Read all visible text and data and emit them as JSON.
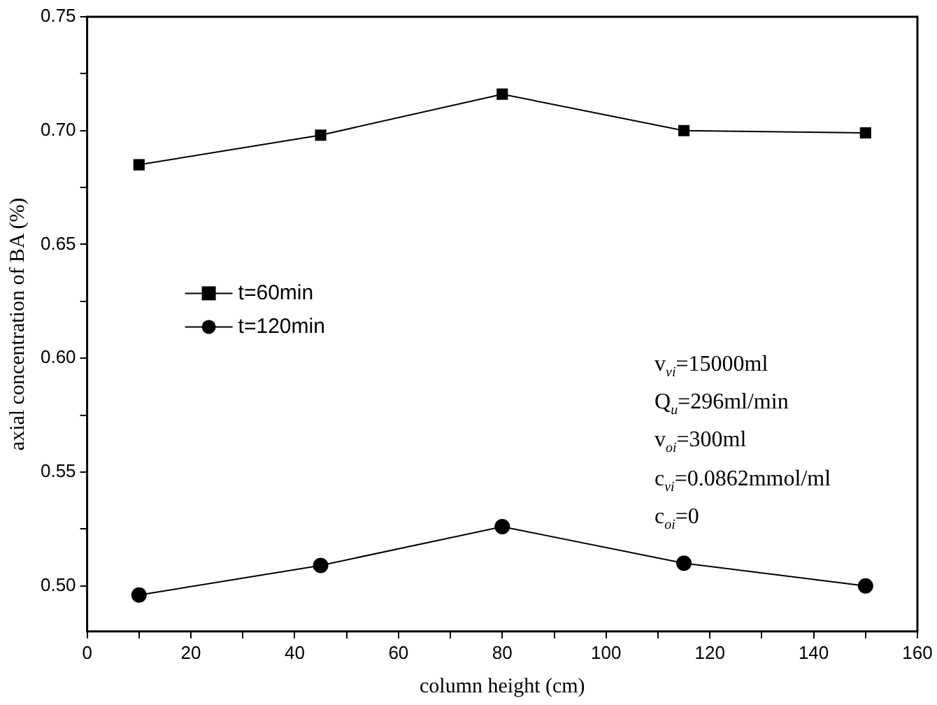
{
  "chart_data": {
    "type": "line",
    "xlabel": "column height (cm)",
    "ylabel": "axial concentration of BA (%)",
    "x": [
      10,
      45,
      80,
      115,
      150
    ],
    "series": [
      {
        "name": "t=60min",
        "color": "#000000",
        "marker": "square",
        "values": [
          0.685,
          0.698,
          0.716,
          0.7,
          0.699
        ]
      },
      {
        "name": "t=120min",
        "color": "#000000",
        "marker": "circle",
        "values": [
          0.496,
          0.509,
          0.526,
          0.51,
          0.5
        ]
      }
    ],
    "xlim": [
      0,
      160
    ],
    "xticks": [
      0,
      {
        "value": 10,
        "label": null
      },
      20,
      {
        "value": 30,
        "label": null
      },
      40,
      {
        "value": 50,
        "label": null
      },
      60,
      {
        "value": 70,
        "label": null
      },
      80,
      {
        "value": 90,
        "label": null
      },
      100,
      {
        "value": 110,
        "label": null
      },
      120,
      {
        "value": 130,
        "label": null
      },
      140,
      {
        "value": 150,
        "label": null
      },
      160
    ],
    "ylim": [
      0.48,
      0.75
    ],
    "yticks": [
      {
        "value": 0.5,
        "label": "0.50"
      },
      {
        "value": 0.525,
        "label": null
      },
      {
        "value": 0.55,
        "label": "0.55"
      },
      {
        "value": 0.575,
        "label": null
      },
      {
        "value": 0.6,
        "label": "0.60"
      },
      {
        "value": 0.625,
        "label": null
      },
      {
        "value": 0.65,
        "label": "0.65"
      },
      {
        "value": 0.675,
        "label": null
      },
      {
        "value": 0.7,
        "label": "0.70"
      },
      {
        "value": 0.725,
        "label": null
      },
      {
        "value": 0.75,
        "label": "0.75"
      }
    ],
    "grid": false,
    "legend": "center left",
    "line_style": "solid",
    "annotations": [
      "v$_{vi}$=15000ml",
      "Q$_{u}$=296ml/min",
      "v$_{oi}$=300ml",
      "c$_{vi}$=0.0862mmol/ml",
      "c$_{oi}$=0"
    ]
  }
}
